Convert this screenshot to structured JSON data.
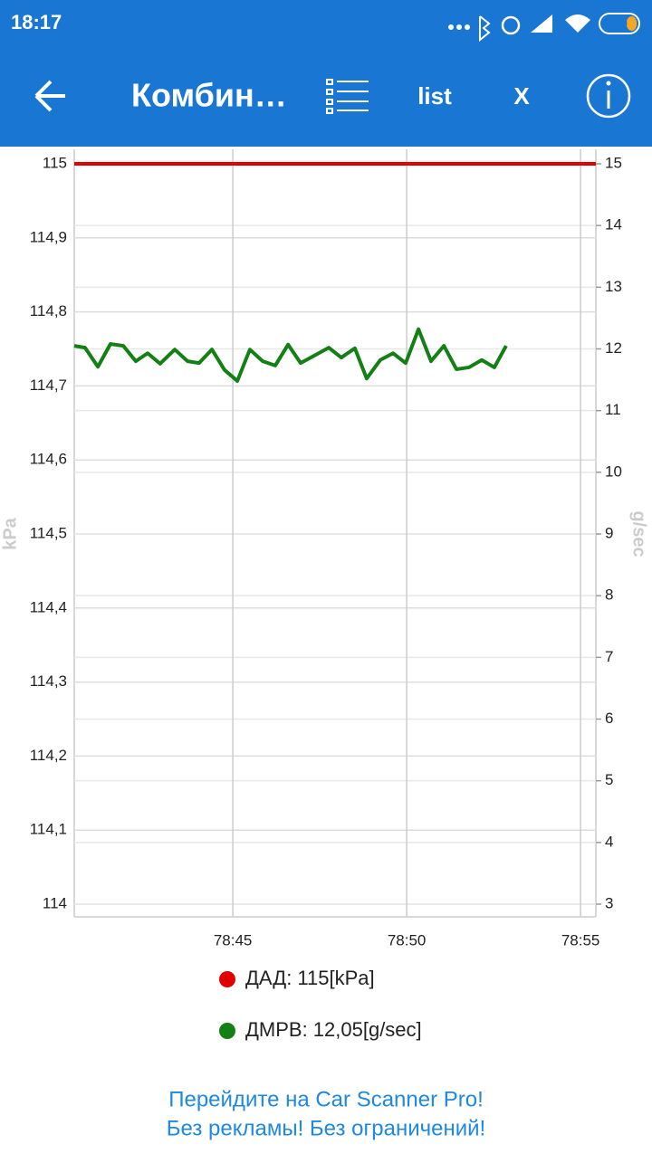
{
  "status_bar": {
    "time": "18:17",
    "battery": "35"
  },
  "app_bar": {
    "title": "Комбин…",
    "list_button": "list",
    "close_button": "X"
  },
  "chart_data": {
    "type": "line",
    "ylabel": "kPa",
    "y2label": "g/sec",
    "xlim": [
      4720.44,
      4735.44
    ],
    "xticks": [
      {
        "value": 4725,
        "label": "78:45"
      },
      {
        "value": 4730,
        "label": "78:50"
      },
      {
        "value": 4735,
        "label": "78:55"
      }
    ],
    "ylim": [
      114,
      115
    ],
    "yticks": [
      114,
      {
        "value": 114.1,
        "label": "114,1"
      },
      {
        "value": 114.2,
        "label": "114,2"
      },
      {
        "value": 114.3,
        "label": "114,3"
      },
      {
        "value": 114.4,
        "label": "114,4"
      },
      {
        "value": 114.5,
        "label": "114,5"
      },
      {
        "value": 114.6,
        "label": "114,6"
      },
      {
        "value": 114.7,
        "label": "114,7"
      },
      {
        "value": 114.8,
        "label": "114,8"
      },
      {
        "value": 114.9,
        "label": "114,9"
      },
      115
    ],
    "y2lim": [
      3,
      15
    ],
    "y2ticks": [
      3,
      4,
      5,
      6,
      7,
      8,
      9,
      10,
      11,
      12,
      13,
      14,
      15
    ],
    "grid": true,
    "series": [
      {
        "name": "ДАД: 115[kPa]",
        "color": "#e00000",
        "axis": "y",
        "x": [
          4720.44,
          4735.44
        ],
        "values": [
          115,
          115
        ]
      },
      {
        "name": "ДМРВ: 12,05[g/sec]",
        "color": "#138013",
        "axis": "y2",
        "x": [
          4720.44,
          4720.75,
          4721.12,
          4721.48,
          4721.85,
          4722.21,
          4722.55,
          4722.91,
          4723.33,
          4723.7,
          4724.03,
          4724.4,
          4724.76,
          4725.13,
          4725.49,
          4725.86,
          4726.22,
          4726.59,
          4726.95,
          4727.34,
          4727.76,
          4728.12,
          4728.51,
          4728.85,
          4729.24,
          4729.61,
          4729.97,
          4730.34,
          4730.7,
          4731.07,
          4731.43,
          4731.79,
          4732.16,
          4732.52,
          4732.86
        ],
        "values": [
          12.05,
          12.02,
          11.71,
          12.08,
          12.05,
          11.8,
          11.93,
          11.76,
          11.99,
          11.8,
          11.77,
          11.99,
          11.66,
          11.48,
          11.99,
          11.8,
          11.73,
          12.07,
          11.77,
          11.89,
          12.02,
          11.86,
          12.01,
          11.52,
          11.82,
          11.93,
          11.77,
          12.32,
          11.8,
          12.05,
          11.67,
          11.7,
          11.82,
          11.7,
          12.05
        ]
      }
    ]
  },
  "promo": {
    "line1": "Перейдите на Car Scanner Pro!",
    "line2": "Без рекламы! Без ограничений!"
  }
}
